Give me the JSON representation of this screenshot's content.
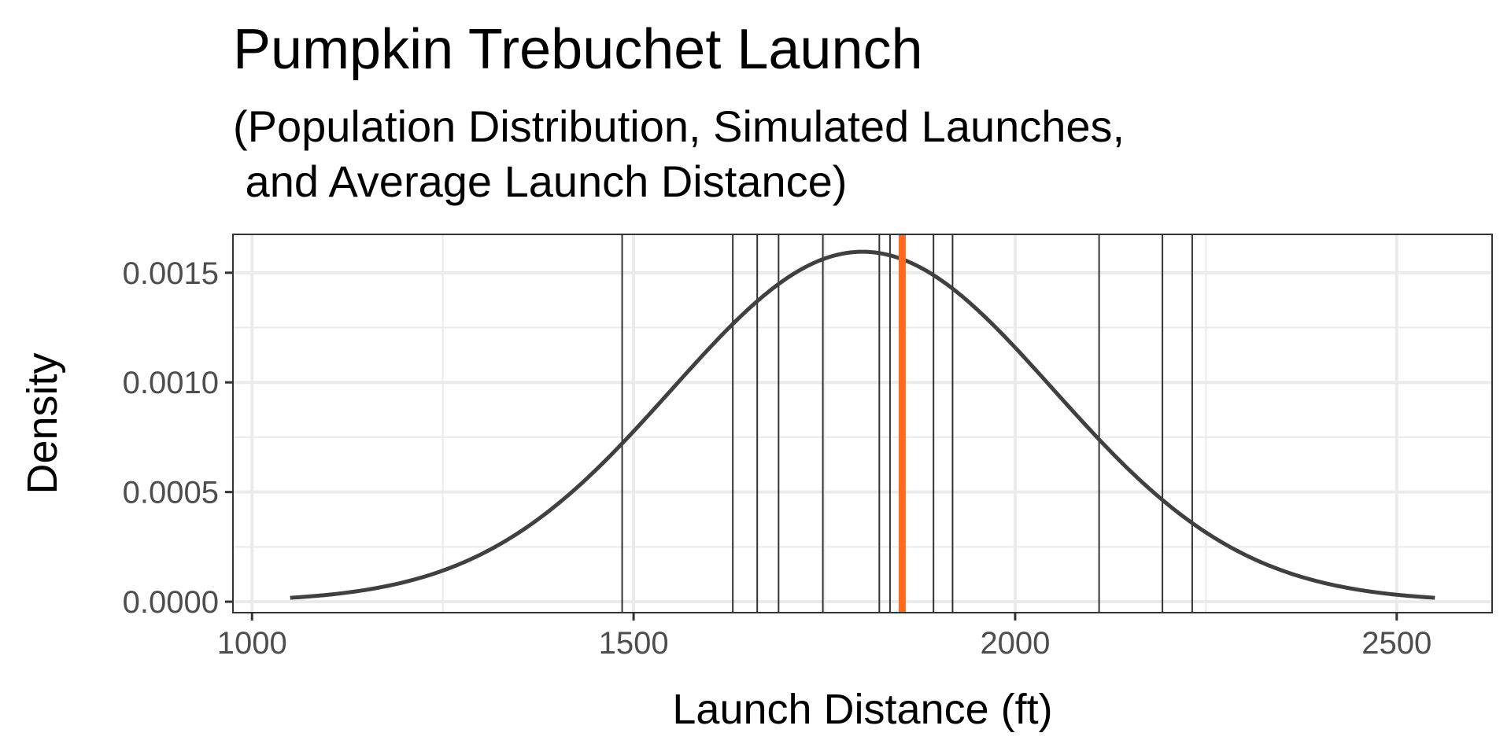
{
  "chart_data": {
    "type": "line",
    "title": "Pumpkin Trebuchet Launch",
    "subtitle": "(Population Distribution, Simulated Launches,\n and Average Launch Distance)",
    "xlabel": "Launch Distance (ft)",
    "ylabel": "Density",
    "xlim": [
      975,
      2625
    ],
    "ylim": [
      -5e-05,
      0.001675
    ],
    "x_ticks": [
      1000,
      1500,
      2000,
      2500
    ],
    "y_ticks": [
      0.0,
      0.0005,
      0.001,
      0.0015
    ],
    "x_tick_labels": [
      "1000",
      "1500",
      "2000",
      "2500"
    ],
    "y_tick_labels": [
      "0.0000",
      "0.0005",
      "0.0010",
      "0.0015"
    ],
    "grid": true,
    "series": [
      {
        "kind": "normal_density",
        "mean": 1800,
        "sd": 250,
        "x_range": [
          1050,
          2550
        ],
        "color": "#404040"
      }
    ],
    "simulated_launches": [
      1485,
      1630,
      1662,
      1690,
      1748,
      1822,
      1836,
      1893,
      1918,
      2110,
      2193,
      2232
    ],
    "average_launch_distance": 1852,
    "colors": {
      "density_curve": "#404040",
      "launch_lines": "#333333",
      "average_line": "#ff6a1f",
      "grid": "#ebebeb",
      "panel_border": "#333333"
    }
  }
}
